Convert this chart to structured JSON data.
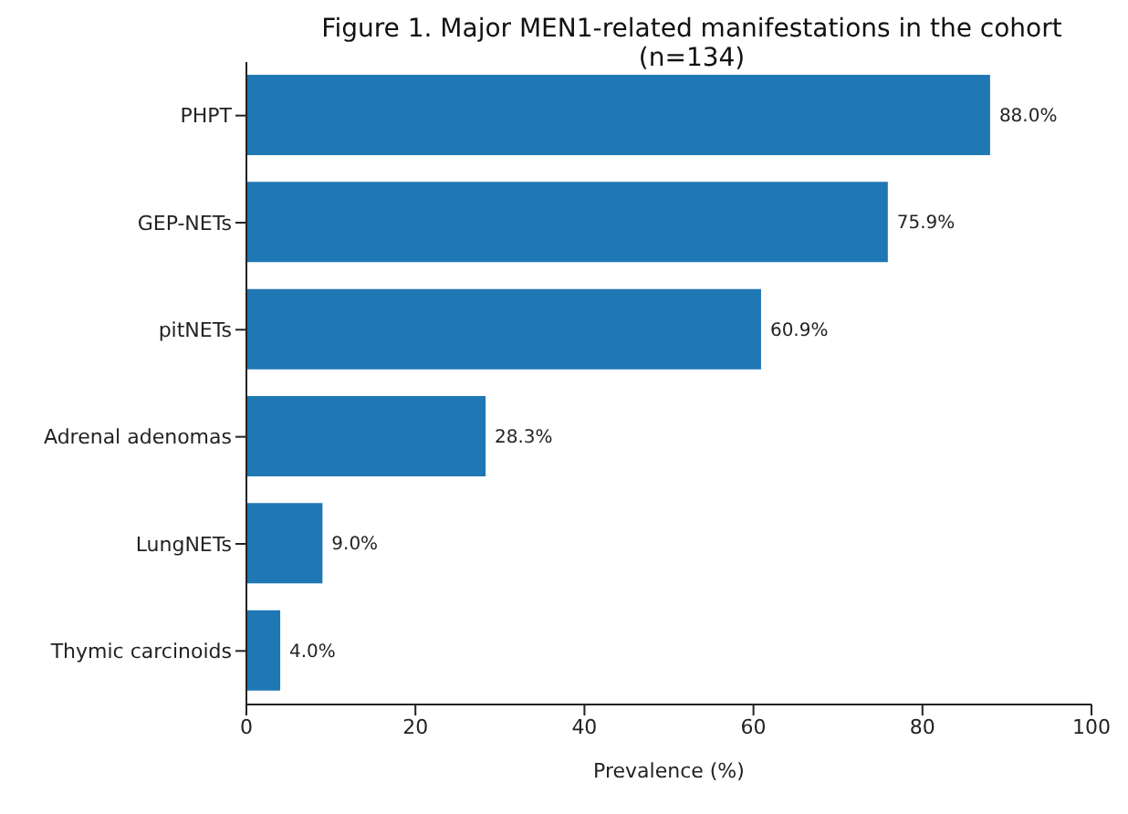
{
  "chart_data": {
    "type": "bar",
    "orientation": "horizontal",
    "title": "Figure 1. Major MEN1-related manifestations in the cohort (n=134)",
    "xlabel": "Prevalence (%)",
    "categories": [
      "PHPT",
      "GEP-NETs",
      "pitNETs",
      "Adrenal adenomas",
      "LungNETs",
      "Thymic carcinoids"
    ],
    "values": [
      88.0,
      75.9,
      60.9,
      28.3,
      9.0,
      4.0
    ],
    "value_labels": [
      "88.0%",
      "75.9%",
      "60.9%",
      "28.3%",
      "9.0%",
      "4.0%"
    ],
    "color": "#1f77b4",
    "xlim": [
      0,
      100
    ],
    "xticks": [
      0,
      20,
      40,
      60,
      80,
      100
    ],
    "grid": false,
    "legend": false
  }
}
